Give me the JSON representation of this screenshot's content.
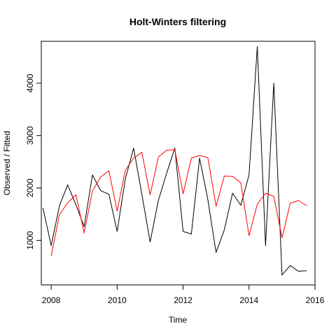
{
  "chart_data": {
    "type": "line",
    "title": "Holt-Winters filtering",
    "xlabel": "Time",
    "ylabel": "Observed / Fitted",
    "xlim": [
      2007.7,
      2016.0
    ],
    "ylim": [
      150,
      4800
    ],
    "x_ticks": [
      2008,
      2010,
      2012,
      2014,
      2016
    ],
    "x_tick_labels": [
      "2008",
      "2010",
      "2012",
      "2014",
      "2016"
    ],
    "y_ticks": [
      1000,
      2000,
      3000,
      4000
    ],
    "y_tick_labels": [
      "1000",
      "2000",
      "3000",
      "4000"
    ],
    "grid": false,
    "legend": "none",
    "series": [
      {
        "color": "#000000",
        "x": [
          2007.75,
          2008.0,
          2008.25,
          2008.5,
          2008.75,
          2009.0,
          2009.25,
          2009.5,
          2009.75,
          2010.0,
          2010.25,
          2010.5,
          2010.75,
          2011.0,
          2011.25,
          2011.5,
          2011.75,
          2012.0,
          2012.25,
          2012.5,
          2012.75,
          2013.0,
          2013.25,
          2013.5,
          2013.75,
          2014.0,
          2014.25,
          2014.5,
          2014.75,
          2015.0,
          2015.25,
          2015.5,
          2015.75
        ],
        "values": [
          1620,
          900,
          1660,
          2060,
          1680,
          1260,
          2250,
          1950,
          1880,
          1170,
          2180,
          2760,
          1880,
          970,
          1760,
          2280,
          2760,
          1170,
          1120,
          2570,
          1780,
          770,
          1200,
          1900,
          1670,
          2250,
          4700,
          900,
          4000,
          340,
          520,
          410,
          420
        ]
      },
      {
        "color": "#ff0000",
        "x": [
          2008.0,
          2008.25,
          2008.5,
          2008.75,
          2009.0,
          2009.25,
          2009.5,
          2009.75,
          2010.0,
          2010.25,
          2010.5,
          2010.75,
          2011.0,
          2011.25,
          2011.5,
          2011.75,
          2012.0,
          2012.25,
          2012.5,
          2012.75,
          2013.0,
          2013.25,
          2013.5,
          2013.75,
          2014.0,
          2014.25,
          2014.5,
          2014.75,
          2015.0,
          2015.25,
          2015.5,
          2015.75
        ],
        "values": [
          700,
          1490,
          1720,
          1870,
          1140,
          1940,
          2210,
          2330,
          1560,
          2340,
          2570,
          2680,
          1870,
          2590,
          2720,
          2730,
          1890,
          2570,
          2620,
          2580,
          1650,
          2230,
          2220,
          2100,
          1090,
          1690,
          1900,
          1840,
          1050,
          1710,
          1760,
          1660
        ]
      }
    ]
  }
}
